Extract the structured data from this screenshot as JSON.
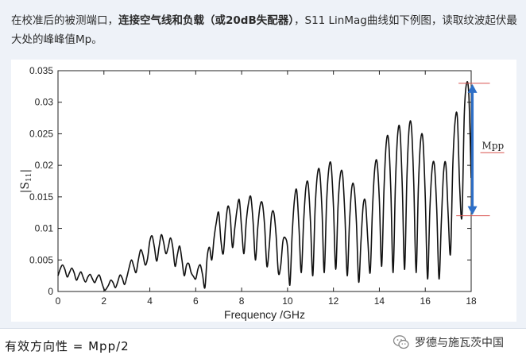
{
  "intro": {
    "part1": "在校准后的被测端口，",
    "bold": "连接空气线和负载（或20dB失配器）",
    "part2": "，S11 LinMag曲线如下例图，读取纹波起伏最大处的峰峰值Mp。"
  },
  "footer": {
    "formula": "有效方向性 = Mpp/2"
  },
  "watermark": {
    "text": "罗德与施瓦茨中国",
    "icon": "wechat-icon"
  },
  "colors": {
    "curve": "#111111",
    "arrow": "#2e6fc7",
    "marker": "#d9534f",
    "panel": "#eef2f8"
  },
  "chart_data": {
    "type": "line",
    "title": "",
    "xlabel": "Frequency /GHz",
    "ylabel": "|S11|",
    "xlim": [
      0,
      18
    ],
    "ylim": [
      0,
      0.035
    ],
    "xticks": [
      0,
      2,
      4,
      6,
      8,
      10,
      12,
      14,
      16,
      18
    ],
    "yticks": [
      0,
      0.005,
      0.01,
      0.015,
      0.02,
      0.025,
      0.03,
      0.035
    ],
    "xtick_labels": [
      "0",
      "2",
      "4",
      "6",
      "8",
      "10",
      "12",
      "14",
      "16",
      "18"
    ],
    "ytick_labels": [
      "0",
      "0.005",
      "0.01",
      "0.015",
      "0.02",
      "0.025",
      "0.03",
      "0.035"
    ],
    "grid": false,
    "series": [
      {
        "x": [
          0,
          0.1,
          0.2,
          0.3,
          0.4,
          0.5,
          0.6,
          0.7,
          0.8,
          0.9,
          1.0,
          1.1,
          1.2,
          1.3,
          1.4,
          1.5,
          1.6,
          1.7,
          1.8,
          1.9,
          2.0,
          2.05,
          2.1,
          2.2,
          2.3,
          2.4,
          2.5,
          2.6,
          2.7,
          2.8,
          2.9,
          3.0,
          3.1,
          3.2,
          3.3,
          3.4,
          3.5,
          3.6,
          3.7,
          3.8,
          3.9,
          4.0,
          4.1,
          4.2,
          4.3,
          4.4,
          4.5,
          4.6,
          4.7,
          4.8,
          4.9,
          5.0,
          5.1,
          5.2,
          5.3,
          5.4,
          5.5,
          5.6,
          5.7,
          5.8,
          5.9,
          6.0,
          6.1,
          6.2,
          6.3,
          6.4,
          6.5,
          6.6,
          6.7,
          6.8,
          6.9,
          7.0,
          7.1,
          7.2,
          7.3,
          7.4,
          7.5,
          7.6,
          7.7,
          7.8,
          7.9,
          8.0,
          8.1,
          8.2,
          8.3,
          8.4,
          8.5,
          8.6,
          8.7,
          8.8,
          8.9,
          9.0,
          9.1,
          9.2,
          9.3,
          9.4,
          9.5,
          9.6,
          9.7,
          9.8,
          9.9,
          10.0,
          10.1,
          10.2,
          10.3,
          10.4,
          10.5,
          10.6,
          10.7,
          10.8,
          10.9,
          11.0,
          11.1,
          11.2,
          11.3,
          11.4,
          11.5,
          11.6,
          11.7,
          11.8,
          11.9,
          12.0,
          12.1,
          12.2,
          12.3,
          12.4,
          12.5,
          12.6,
          12.7,
          12.8,
          12.9,
          13.0,
          13.1,
          13.2,
          13.3,
          13.4,
          13.5,
          13.6,
          13.7,
          13.8,
          13.9,
          14.0,
          14.1,
          14.2,
          14.3,
          14.4,
          14.5,
          14.6,
          14.7,
          14.8,
          14.9,
          15.0,
          15.1,
          15.2,
          15.3,
          15.4,
          15.5,
          15.6,
          15.7,
          15.8,
          15.9,
          16.0,
          16.1,
          16.2,
          16.3,
          16.4,
          16.5,
          16.6,
          16.7,
          16.8,
          16.9,
          17.0,
          17.1,
          17.2,
          17.3,
          17.4,
          17.5,
          17.6,
          17.7,
          17.8,
          17.9,
          18.0
        ],
        "y": [
          0.0025,
          0.0036,
          0.0042,
          0.0035,
          0.0023,
          0.003,
          0.0037,
          0.003,
          0.0018,
          0.0025,
          0.0031,
          0.0022,
          0.0015,
          0.0023,
          0.0027,
          0.002,
          0.0014,
          0.0022,
          0.0026,
          0.0015,
          0.0004,
          0.0002,
          0.0004,
          0.001,
          0.0018,
          0.0014,
          0.0006,
          0.0015,
          0.0026,
          0.0021,
          0.0011,
          0.0023,
          0.0038,
          0.005,
          0.004,
          0.003,
          0.005,
          0.0066,
          0.0058,
          0.0042,
          0.0052,
          0.008,
          0.0088,
          0.007,
          0.0048,
          0.007,
          0.009,
          0.0078,
          0.006,
          0.007,
          0.0085,
          0.007,
          0.004,
          0.0058,
          0.0072,
          0.005,
          0.0025,
          0.0042,
          0.0044,
          0.003,
          0.0024,
          0.002,
          0.0036,
          0.0042,
          0.0026,
          0.0006,
          0.0055,
          0.007,
          0.005,
          0.0085,
          0.011,
          0.0125,
          0.008,
          0.006,
          0.0105,
          0.0135,
          0.012,
          0.007,
          0.01,
          0.013,
          0.0145,
          0.01,
          0.006,
          0.011,
          0.014,
          0.015,
          0.011,
          0.005,
          0.01,
          0.0135,
          0.014,
          0.0105,
          0.004,
          0.007,
          0.012,
          0.0125,
          0.009,
          0.003,
          0.004,
          0.008,
          0.0085,
          0.007,
          0.001,
          0.009,
          0.0145,
          0.016,
          0.01,
          0.003,
          0.011,
          0.0165,
          0.017,
          0.011,
          0.0025,
          0.013,
          0.0185,
          0.019,
          0.013,
          0.003,
          0.014,
          0.0195,
          0.02,
          0.0135,
          0.0035,
          0.0135,
          0.0185,
          0.0185,
          0.012,
          0.0025,
          0.011,
          0.0165,
          0.0165,
          0.011,
          0.0015,
          0.008,
          0.0138,
          0.014,
          0.008,
          0.003,
          0.013,
          0.0195,
          0.0205,
          0.0145,
          0.004,
          0.016,
          0.0235,
          0.024,
          0.016,
          0.003,
          0.017,
          0.025,
          0.0255,
          0.0165,
          0.0035,
          0.018,
          0.026,
          0.026,
          0.017,
          0.003,
          0.0165,
          0.024,
          0.024,
          0.015,
          0.002,
          0.013,
          0.0195,
          0.02,
          0.013,
          0.002,
          0.011,
          0.019,
          0.02,
          0.012,
          0.006,
          0.02,
          0.027,
          0.0275,
          0.0165,
          0.012,
          0.028,
          0.033,
          0.031,
          0.018
        ]
      }
    ],
    "annotations": [
      {
        "text": "Mpp",
        "type": "double-arrow",
        "x": 17.5,
        "y_from": 0.012,
        "y_to": 0.033
      }
    ]
  }
}
